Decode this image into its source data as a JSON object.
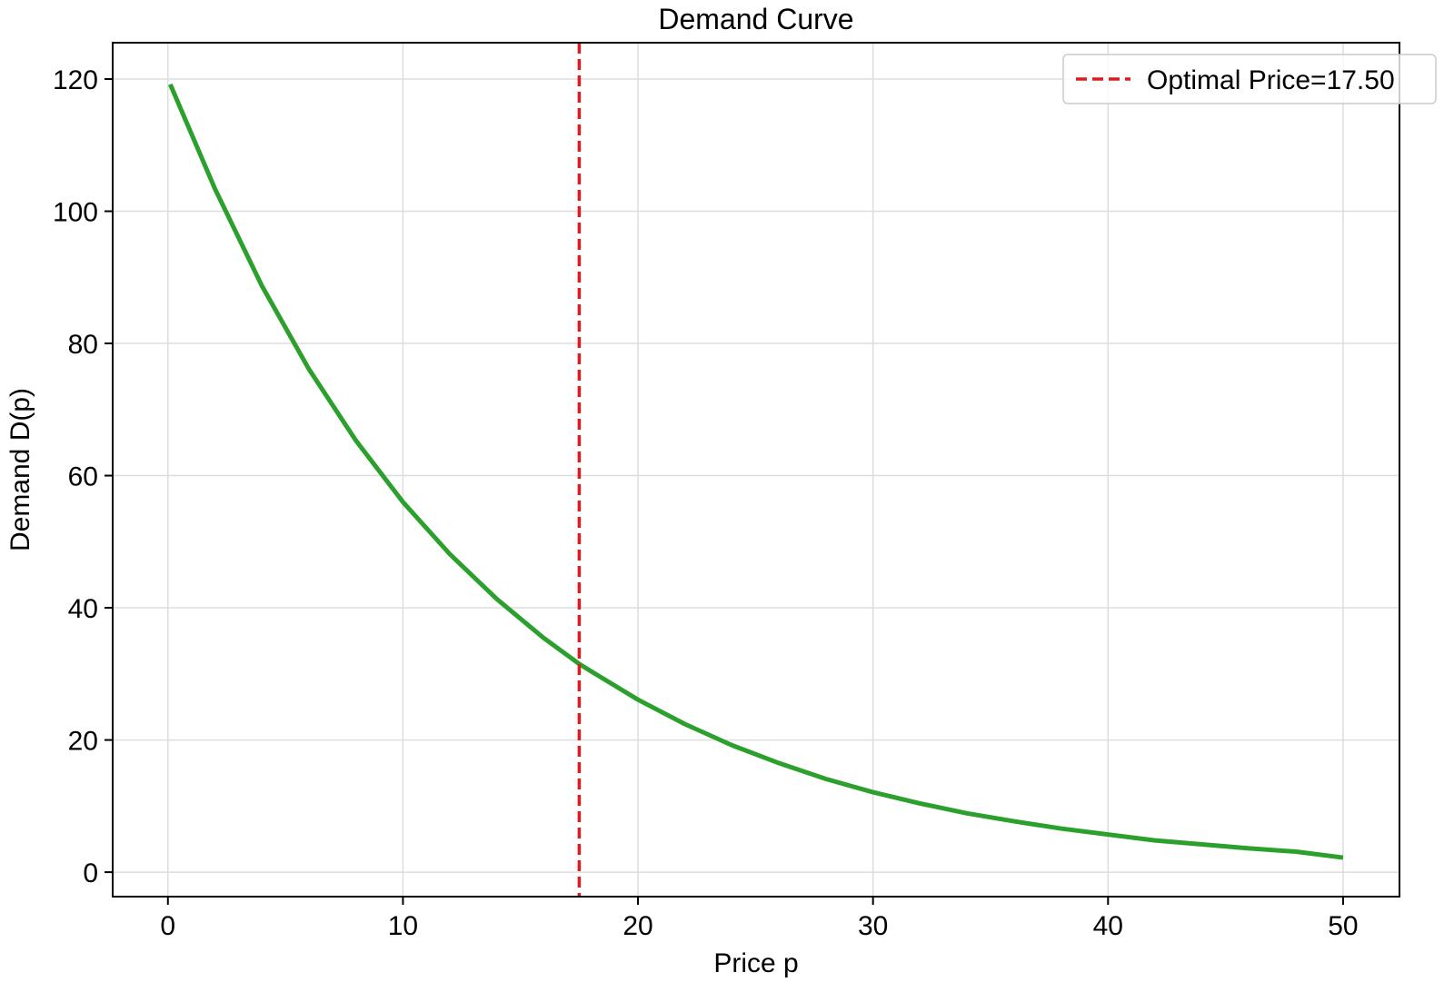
{
  "chart_data": {
    "type": "line",
    "title": "Demand Curve",
    "xlabel": "Price p",
    "ylabel": "Demand D(p)",
    "xlim": [
      -2.35,
      52.4
    ],
    "ylim": [
      -3.7,
      125.5
    ],
    "xticks": [
      0,
      10,
      20,
      30,
      40,
      50
    ],
    "yticks": [
      0,
      20,
      40,
      60,
      80,
      100,
      120
    ],
    "grid": true,
    "legend_position": "upper right",
    "series": [
      {
        "color": "#2ca02c",
        "x": [
          0.1,
          2,
          4,
          6,
          8,
          10,
          12,
          14,
          16,
          17.5,
          18,
          20,
          22,
          24,
          26,
          28,
          30,
          32,
          34,
          36,
          38,
          40,
          42,
          44,
          46,
          48,
          50
        ],
        "y": [
          119.2,
          103.4,
          88.7,
          76.1,
          65.3,
          56.0,
          48.1,
          41.3,
          35.4,
          31.5,
          30.4,
          26.1,
          22.4,
          19.2,
          16.5,
          14.1,
          12.1,
          10.4,
          8.9,
          7.7,
          6.6,
          5.7,
          4.8,
          4.2,
          3.6,
          3.1,
          2.2
        ]
      }
    ],
    "vlines": [
      {
        "name": "Optimal Price=17.50",
        "x": 17.5,
        "color": "#e31a1c",
        "style": "dashed"
      }
    ]
  }
}
